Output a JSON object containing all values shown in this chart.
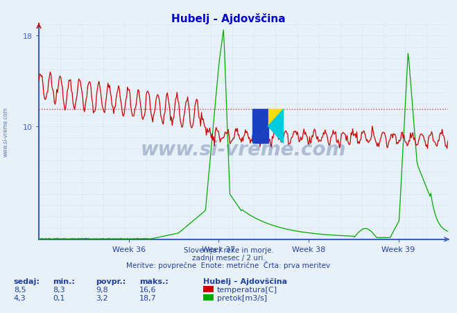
{
  "title": "Hubelj - Ajdovščina",
  "title_color": "#0000cc",
  "bg_color": "#e8f0f8",
  "plot_bg_color": "#e8f0f8",
  "grid_color": "#c8d8e8",
  "axis_color": "#4060c0",
  "text_color": "#2040a0",
  "ylim": [
    0,
    19
  ],
  "ytick_labels": [
    "10",
    "18"
  ],
  "ytick_vals": [
    10,
    18
  ],
  "temp_avg": 11.5,
  "temp_color": "#cc0000",
  "flow_color": "#00aa00",
  "temp_avg_line_color": "#cc4444",
  "watermark": "www.si-vreme.com",
  "footer_line1": "Slovenija / reke in morje.",
  "footer_line2": "zadnji mesec / 2 uri.",
  "footer_line3": "Meritve: povprečne  Enote: metrične  Črta: prva meritev",
  "legend_title": "Hubelj – Ajdovščina",
  "stats_headers": [
    "sedaj:",
    "min.:",
    "povpr.:",
    "maks.:"
  ],
  "temp_stats": [
    "8,5",
    "8,3",
    "9,8",
    "16,6"
  ],
  "flow_stats": [
    "4,3",
    "0,1",
    "3,2",
    "18,7"
  ],
  "temp_label": "temperatura[C]",
  "flow_label": "pretok[m3/s]",
  "n_points": 504,
  "week_start": 35.0,
  "week_end": 39.55
}
